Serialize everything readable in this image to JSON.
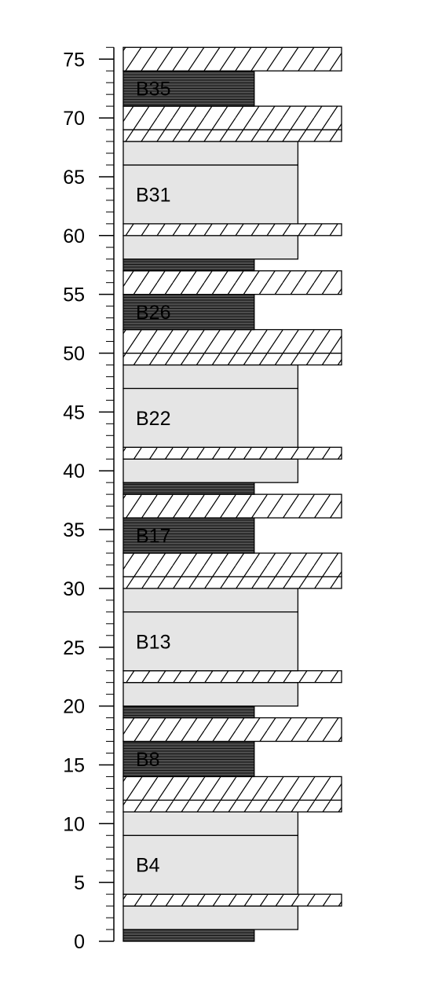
{
  "chart_data": {
    "type": "stratigraphic-column",
    "title": "",
    "xlabel": "",
    "ylabel": "",
    "ylim": [
      0,
      76
    ],
    "y_ticks": [
      "0",
      "5",
      "10",
      "15",
      "20",
      "25",
      "30",
      "35",
      "40",
      "45",
      "50",
      "55",
      "60",
      "65",
      "70",
      "75"
    ],
    "lithologies": {
      "dark": {
        "fill": "#4d4d4d",
        "pattern": "horizontal-lines"
      },
      "light": {
        "fill": "#e5e5e5",
        "pattern": "none"
      },
      "hatched": {
        "fill": "#ffffff",
        "pattern": "diagonal-lines"
      }
    },
    "beds": [
      {
        "lith": "dark",
        "from": 0,
        "to": 1,
        "width": 0.6
      },
      {
        "lith": "light",
        "from": 1,
        "to": 3,
        "width": 0.8
      },
      {
        "lith": "hatched",
        "from": 3,
        "to": 4,
        "width": 1.0
      },
      {
        "lith": "light",
        "from": 4,
        "to": 9,
        "width": 0.8,
        "label": "B4"
      },
      {
        "lith": "light",
        "from": 9,
        "to": 11,
        "width": 0.8
      },
      {
        "lith": "hatched",
        "from": 11,
        "to": 12,
        "width": 1.0
      },
      {
        "lith": "hatched",
        "from": 12,
        "to": 14,
        "width": 1.0
      },
      {
        "lith": "dark",
        "from": 14,
        "to": 17,
        "width": 0.6,
        "label": "B8"
      },
      {
        "lith": "hatched",
        "from": 17,
        "to": 19,
        "width": 1.0
      },
      {
        "lith": "dark",
        "from": 19,
        "to": 20,
        "width": 0.6
      },
      {
        "lith": "light",
        "from": 20,
        "to": 22,
        "width": 0.8
      },
      {
        "lith": "hatched",
        "from": 22,
        "to": 23,
        "width": 1.0
      },
      {
        "lith": "light",
        "from": 23,
        "to": 28,
        "width": 0.8,
        "label": "B13"
      },
      {
        "lith": "light",
        "from": 28,
        "to": 30,
        "width": 0.8
      },
      {
        "lith": "hatched",
        "from": 30,
        "to": 31,
        "width": 1.0
      },
      {
        "lith": "hatched",
        "from": 31,
        "to": 33,
        "width": 1.0
      },
      {
        "lith": "dark",
        "from": 33,
        "to": 36,
        "width": 0.6,
        "label": "B17"
      },
      {
        "lith": "hatched",
        "from": 36,
        "to": 38,
        "width": 1.0
      },
      {
        "lith": "dark",
        "from": 38,
        "to": 39,
        "width": 0.6
      },
      {
        "lith": "light",
        "from": 39,
        "to": 41,
        "width": 0.8
      },
      {
        "lith": "hatched",
        "from": 41,
        "to": 42,
        "width": 1.0
      },
      {
        "lith": "light",
        "from": 42,
        "to": 47,
        "width": 0.8,
        "label": "B22"
      },
      {
        "lith": "light",
        "from": 47,
        "to": 49,
        "width": 0.8
      },
      {
        "lith": "hatched",
        "from": 49,
        "to": 50,
        "width": 1.0
      },
      {
        "lith": "hatched",
        "from": 50,
        "to": 52,
        "width": 1.0
      },
      {
        "lith": "dark",
        "from": 52,
        "to": 55,
        "width": 0.6,
        "label": "B26"
      },
      {
        "lith": "hatched",
        "from": 55,
        "to": 57,
        "width": 1.0
      },
      {
        "lith": "dark",
        "from": 57,
        "to": 58,
        "width": 0.6
      },
      {
        "lith": "light",
        "from": 58,
        "to": 60,
        "width": 0.8
      },
      {
        "lith": "hatched",
        "from": 60,
        "to": 61,
        "width": 1.0
      },
      {
        "lith": "light",
        "from": 61,
        "to": 66,
        "width": 0.8,
        "label": "B31"
      },
      {
        "lith": "light",
        "from": 66,
        "to": 68,
        "width": 0.8
      },
      {
        "lith": "hatched",
        "from": 68,
        "to": 69,
        "width": 1.0
      },
      {
        "lith": "hatched",
        "from": 69,
        "to": 71,
        "width": 1.0
      },
      {
        "lith": "dark",
        "from": 71,
        "to": 74,
        "width": 0.6,
        "label": "B35"
      },
      {
        "lith": "hatched",
        "from": 74,
        "to": 76,
        "width": 1.0
      }
    ]
  }
}
